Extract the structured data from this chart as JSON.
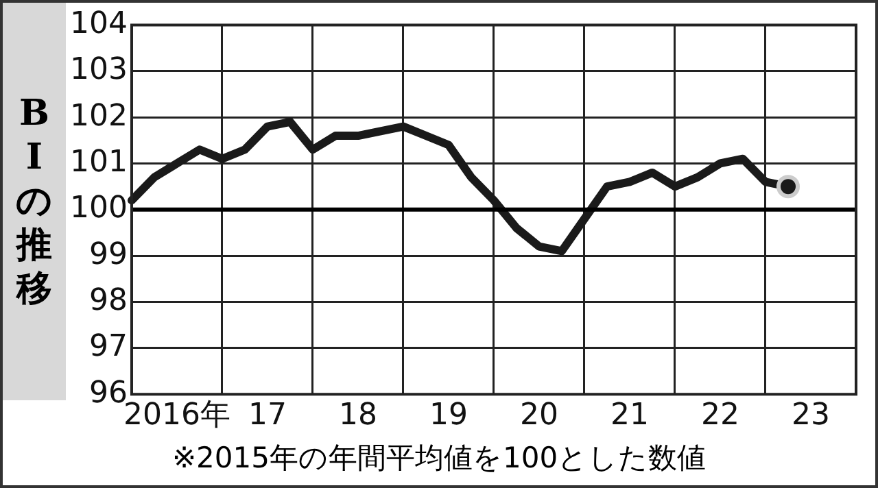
{
  "chart_data": {
    "type": "line",
    "title": "BIの推移",
    "categories": [
      null,
      null,
      "2016年",
      null,
      null,
      null,
      "17",
      null,
      null,
      null,
      "18",
      null,
      null,
      null,
      "19",
      null,
      null,
      null,
      "20",
      null,
      null,
      null,
      "21",
      null,
      null,
      null,
      "22",
      null,
      null,
      null,
      "23",
      null,
      null
    ],
    "series": [
      {
        "color": "#1a1a1a",
        "values": [
          100.2,
          100.7,
          101.0,
          101.3,
          101.1,
          101.3,
          101.8,
          101.9,
          101.3,
          101.6,
          101.6,
          101.7,
          101.8,
          101.6,
          101.4,
          100.7,
          100.2,
          99.6,
          99.2,
          99.1,
          99.8,
          100.5,
          100.6,
          100.8,
          100.5,
          100.7,
          101.0,
          101.1,
          100.6,
          100.5,
          null,
          null,
          null
        ]
      },
      {
        "type": "scatter",
        "color": "#1a1a1a",
        "values": [
          null,
          null,
          null,
          null,
          null,
          null,
          null,
          null,
          null,
          null,
          null,
          null,
          null,
          null,
          null,
          null,
          null,
          null,
          null,
          null,
          null,
          null,
          null,
          null,
          null,
          null,
          null,
          null,
          null,
          100.5,
          null,
          null,
          null
        ],
        "marker": "circle"
      }
    ],
    "ylim": [
      96,
      104
    ],
    "yticks": [
      96,
      97,
      98,
      99,
      100,
      101,
      102,
      103,
      104
    ],
    "grid": true,
    "legend": false,
    "marker": "none",
    "line_style": "solid",
    "ref_lines": [
      {
        "axis": "y",
        "value": 100,
        "color": "#000000"
      }
    ],
    "annotations": [
      "※2015年の年間平均値を100とした数値"
    ]
  }
}
